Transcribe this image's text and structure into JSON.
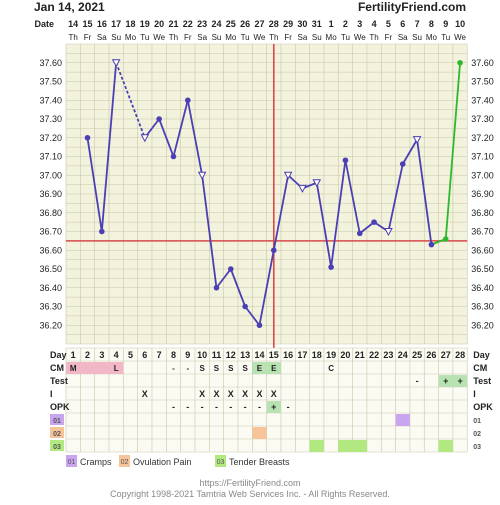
{
  "header": {
    "date": "Jan 14, 2021",
    "brand": "FertilityFriend.com",
    "date_row_label": "Date"
  },
  "colors": {
    "plot_bg": "#f3f2dc",
    "grid": "#c8c7aa",
    "temp_line": "#4a3fb5",
    "coverline": "#d94a4a",
    "ovulation_line": "#d94a4a",
    "future_line": "#2db82d",
    "label_pink": "#f2b7c6",
    "label_green": "#b9e2b3",
    "cramps": "#c9a4ef",
    "ovulation_pain": "#f7c49a",
    "tender_breasts": "#b2e880"
  },
  "chart_data": {
    "type": "line",
    "ylim": [
      36.1,
      37.7
    ],
    "y_ticks": [
      "37.60",
      "37.50",
      "37.40",
      "37.30",
      "37.20",
      "37.10",
      "37.00",
      "36.90",
      "36.80",
      "36.70",
      "36.60",
      "36.50",
      "36.40",
      "36.30",
      "36.20"
    ],
    "dates": [
      "14",
      "15",
      "16",
      "17",
      "18",
      "19",
      "20",
      "21",
      "22",
      "23",
      "24",
      "25",
      "26",
      "27",
      "28",
      "29",
      "30",
      "31",
      "1",
      "2",
      "3",
      "4",
      "5",
      "6",
      "7",
      "8",
      "9",
      "10"
    ],
    "weekdays": [
      "Th",
      "Fr",
      "Sa",
      "Su",
      "Mo",
      "Tu",
      "We",
      "Th",
      "Fr",
      "Sa",
      "Su",
      "Mo",
      "Tu",
      "We",
      "Th",
      "Fr",
      "Sa",
      "Su",
      "Mo",
      "Tu",
      "We",
      "Th",
      "Fr",
      "Sa",
      "Su",
      "Mo",
      "Tu",
      "We"
    ],
    "cycle_days": [
      "1",
      "2",
      "3",
      "4",
      "5",
      "6",
      "7",
      "8",
      "9",
      "10",
      "11",
      "12",
      "13",
      "14",
      "15",
      "16",
      "17",
      "18",
      "19",
      "20",
      "21",
      "22",
      "23",
      "24",
      "25",
      "26",
      "27",
      "28"
    ],
    "temperatures": [
      null,
      37.2,
      36.7,
      37.6,
      null,
      37.2,
      37.3,
      37.1,
      37.4,
      37.0,
      36.4,
      36.5,
      36.3,
      36.2,
      36.6,
      37.0,
      36.93,
      36.96,
      36.51,
      37.08,
      36.69,
      36.75,
      36.7,
      37.06,
      37.19,
      36.63,
      36.66,
      37.6
    ],
    "open_markers": [
      3,
      5,
      9,
      15,
      16,
      17,
      22,
      24
    ],
    "dashed_segment": [
      3,
      5
    ],
    "future_segment_from": 25,
    "coverline": 36.65,
    "ovulation_day": 15
  },
  "rows": {
    "labels": [
      "Day",
      "CM",
      "Test",
      "I",
      "OPK",
      "01",
      "02",
      "03"
    ],
    "cm": [
      "M",
      "",
      "",
      "L",
      "",
      "",
      "",
      "",
      "",
      "",
      "",
      "",
      "",
      "",
      "",
      "",
      "",
      "",
      "C",
      "",
      "",
      "",
      "",
      "",
      "",
      "",
      "",
      ""
    ],
    "test": [
      "",
      "",
      "",
      "",
      "",
      "",
      "",
      "",
      "",
      "",
      "",
      "",
      "",
      "",
      "",
      "",
      "",
      "",
      "",
      "",
      "",
      "",
      "",
      "",
      "-",
      "",
      "+",
      "+"
    ],
    "intercourse": [
      "",
      "",
      "",
      "",
      "",
      "X",
      "",
      "",
      "",
      "X",
      "X",
      "X",
      "X",
      "X",
      "X",
      "",
      "",
      "",
      "",
      "",
      "",
      "",
      "",
      "",
      "",
      "",
      "",
      ""
    ],
    "opk": [
      "",
      "",
      "",
      "",
      "",
      "",
      "",
      "-",
      "-",
      "-",
      "-",
      "-",
      "-",
      "-",
      "+",
      "-",
      "",
      "",
      "",
      "",
      "",
      "",
      "",
      "",
      "",
      "",
      "",
      ""
    ],
    "cm_values": [
      "",
      "",
      "",
      "",
      "",
      "",
      "",
      "-",
      "-",
      "S",
      "S",
      "S",
      "S",
      "E",
      "E",
      "",
      "",
      "",
      "",
      "",
      "",
      "",
      "",
      "",
      "",
      "",
      "",
      ""
    ]
  },
  "legend": {
    "items": [
      {
        "code": "01",
        "label": "Cramps"
      },
      {
        "code": "02",
        "label": "Ovulation Pain"
      },
      {
        "code": "03",
        "label": "Tender Breasts"
      }
    ]
  },
  "footer": {
    "url": "https://FertilityFriend.com",
    "copyright": "Copyright 1998-2021 Tamtria Web Services Inc. - All Rights Reserved."
  }
}
